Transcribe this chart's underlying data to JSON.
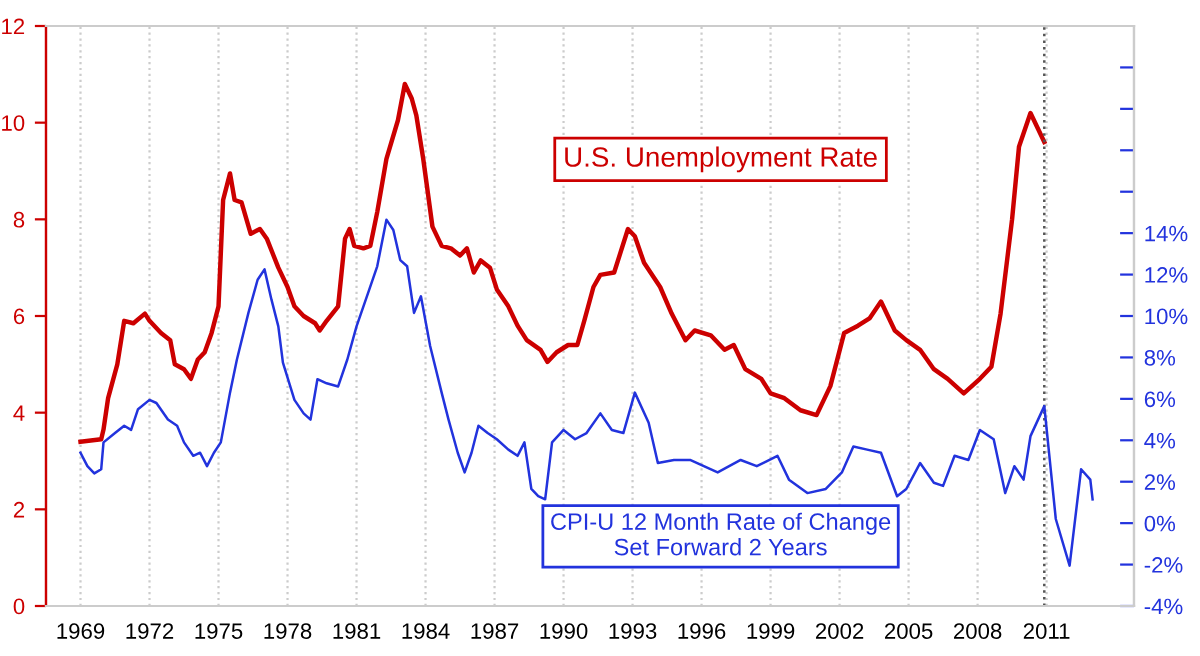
{
  "chart_data": {
    "type": "line",
    "xlim": [
      1967.5,
      2014.8
    ],
    "xticks": [
      1969,
      1972,
      1975,
      1978,
      1981,
      1984,
      1987,
      1990,
      1993,
      1996,
      1999,
      2002,
      2005,
      2008,
      2011
    ],
    "ylim": [
      0,
      12
    ],
    "yticks": [
      0,
      2,
      4,
      6,
      8,
      10,
      12
    ],
    "y2lim": [
      -4,
      24
    ],
    "y2ticks": [
      {
        "value": -4,
        "label": "-4%"
      },
      {
        "value": -2,
        "label": "-2%"
      },
      {
        "value": 0,
        "label": "0%"
      },
      {
        "value": 2,
        "label": "2%"
      },
      {
        "value": 4,
        "label": "4%"
      },
      {
        "value": 6,
        "label": "6%"
      },
      {
        "value": 8,
        "label": "8%"
      },
      {
        "value": 10,
        "label": "10%"
      },
      {
        "value": 12,
        "label": "12%"
      },
      {
        "value": 14,
        "label": "14%"
      },
      {
        "value": 16,
        "label": null
      },
      {
        "value": 18,
        "label": null
      },
      {
        "value": 20,
        "label": null
      },
      {
        "value": 22,
        "label": null
      }
    ],
    "grid": "x",
    "legend": false,
    "line_style": "solid",
    "marker": "none",
    "ref_lines": [
      {
        "axis": "x",
        "value": 2010.9,
        "color": "#555555",
        "line_style": "dotted"
      }
    ],
    "series": [
      {
        "name": "U.S. Unemployment Rate",
        "color": "#cc0000",
        "x": [
          1969.0,
          1969.9,
          1970.0,
          1970.2,
          1970.6,
          1970.9,
          1971.3,
          1971.8,
          1972.0,
          1972.5,
          1972.9,
          1973.1,
          1973.5,
          1973.8,
          1974.1,
          1974.4,
          1974.7,
          1975.0,
          1975.2,
          1975.5,
          1975.7,
          1976.0,
          1976.4,
          1976.8,
          1977.1,
          1977.6,
          1978.0,
          1978.3,
          1978.7,
          1979.2,
          1979.4,
          1979.7,
          1980.2,
          1980.5,
          1980.7,
          1980.9,
          1981.3,
          1981.6,
          1981.9,
          1982.3,
          1982.8,
          1983.1,
          1983.4,
          1983.6,
          1983.9,
          1984.3,
          1984.7,
          1985.1,
          1985.5,
          1985.8,
          1986.1,
          1986.4,
          1986.8,
          1987.1,
          1987.6,
          1988.0,
          1988.4,
          1989.0,
          1989.3,
          1989.7,
          1990.2,
          1990.6,
          1990.9,
          1991.3,
          1991.6,
          1992.2,
          1992.8,
          1993.1,
          1993.5,
          1994.2,
          1994.7,
          1995.3,
          1995.7,
          1996.4,
          1997.0,
          1997.4,
          1997.9,
          1998.6,
          1999.0,
          1999.6,
          2000.3,
          2001.0,
          2001.6,
          2002.2,
          2002.8,
          2003.3,
          2003.8,
          2004.4,
          2004.9,
          2005.5,
          2006.1,
          2006.7,
          2007.4,
          2008.1,
          2008.6,
          2009.0,
          2009.5,
          2009.8,
          2010.3,
          2010.6,
          2010.9
        ],
        "values": [
          3.4,
          3.45,
          3.65,
          4.3,
          5.0,
          5.9,
          5.85,
          6.05,
          5.9,
          5.65,
          5.5,
          5.0,
          4.9,
          4.7,
          5.1,
          5.25,
          5.65,
          6.2,
          8.4,
          8.95,
          8.4,
          8.35,
          7.7,
          7.8,
          7.6,
          7.0,
          6.6,
          6.2,
          6.0,
          5.85,
          5.7,
          5.9,
          6.2,
          7.6,
          7.8,
          7.45,
          7.4,
          7.45,
          8.15,
          9.25,
          10.05,
          10.8,
          10.5,
          10.15,
          9.25,
          7.85,
          7.45,
          7.4,
          7.25,
          7.4,
          6.9,
          7.15,
          7.0,
          6.55,
          6.2,
          5.8,
          5.5,
          5.3,
          5.05,
          5.25,
          5.4,
          5.4,
          5.9,
          6.6,
          6.85,
          6.9,
          7.8,
          7.65,
          7.1,
          6.6,
          6.05,
          5.5,
          5.7,
          5.6,
          5.3,
          5.4,
          4.9,
          4.7,
          4.4,
          4.3,
          4.05,
          3.95,
          4.55,
          5.65,
          5.8,
          5.95,
          6.3,
          5.7,
          5.5,
          5.3,
          4.9,
          4.7,
          4.4,
          4.7,
          4.95,
          6.05,
          8.0,
          9.5,
          10.2,
          9.9,
          9.6
        ]
      },
      {
        "name": "CPI-U 12 Month Rate of Change\nSet Forward 2 Years",
        "color": "#2233dd",
        "axis": "y2",
        "x": [
          1969.0,
          1969.3,
          1969.6,
          1969.9,
          1970.0,
          1970.5,
          1970.9,
          1971.2,
          1971.5,
          1972.0,
          1972.3,
          1972.8,
          1973.2,
          1973.5,
          1973.9,
          1974.2,
          1974.5,
          1974.8,
          1975.1,
          1975.5,
          1975.8,
          1976.3,
          1976.7,
          1977.0,
          1977.3,
          1977.6,
          1977.8,
          1978.3,
          1978.7,
          1979.0,
          1979.3,
          1979.7,
          1980.2,
          1980.6,
          1981.0,
          1981.5,
          1981.9,
          1982.3,
          1982.6,
          1982.9,
          1983.2,
          1983.5,
          1983.8,
          1984.2,
          1984.7,
          1985.0,
          1985.4,
          1985.7,
          1986.0,
          1986.3,
          1986.7,
          1987.1,
          1987.6,
          1988.0,
          1988.3,
          1988.6,
          1988.9,
          1989.2,
          1989.5,
          1990.0,
          1990.5,
          1991.0,
          1991.6,
          1992.1,
          1992.6,
          1993.1,
          1993.7,
          1994.1,
          1994.8,
          1995.5,
          1996.1,
          1996.7,
          1997.7,
          1998.4,
          1999.3,
          1999.8,
          2000.6,
          2001.4,
          2002.1,
          2002.6,
          2003.2,
          2003.8,
          2004.5,
          2004.9,
          2005.5,
          2006.1,
          2006.5,
          2007.0,
          2007.6,
          2008.1,
          2008.7,
          2009.2,
          2009.6,
          2010.0,
          2010.3,
          2010.9,
          2011.4,
          2012.0,
          2012.5,
          2012.9,
          2013.0
        ],
        "values": [
          3.4,
          2.75,
          2.4,
          2.6,
          3.9,
          4.35,
          4.7,
          4.5,
          5.5,
          5.95,
          5.8,
          5.0,
          4.7,
          3.9,
          3.25,
          3.4,
          2.75,
          3.4,
          3.9,
          6.3,
          7.9,
          10.15,
          11.75,
          12.25,
          10.8,
          9.5,
          7.75,
          5.95,
          5.3,
          5.0,
          6.95,
          6.75,
          6.6,
          7.9,
          9.5,
          11.1,
          12.4,
          14.65,
          14.15,
          12.7,
          12.4,
          10.15,
          10.95,
          8.55,
          6.3,
          5.0,
          3.4,
          2.45,
          3.4,
          4.7,
          4.35,
          4.05,
          3.55,
          3.25,
          3.9,
          1.65,
          1.3,
          1.15,
          3.9,
          4.5,
          4.05,
          4.35,
          5.3,
          4.5,
          4.35,
          6.3,
          4.85,
          2.9,
          3.05,
          3.05,
          2.75,
          2.45,
          3.05,
          2.75,
          3.25,
          2.1,
          1.45,
          1.65,
          2.45,
          3.7,
          3.55,
          3.4,
          1.3,
          1.65,
          2.9,
          1.95,
          1.8,
          3.25,
          3.05,
          4.5,
          4.05,
          1.45,
          2.75,
          2.1,
          4.2,
          5.65,
          0.2,
          -2.05,
          2.6,
          2.1,
          1.15
        ]
      }
    ]
  }
}
